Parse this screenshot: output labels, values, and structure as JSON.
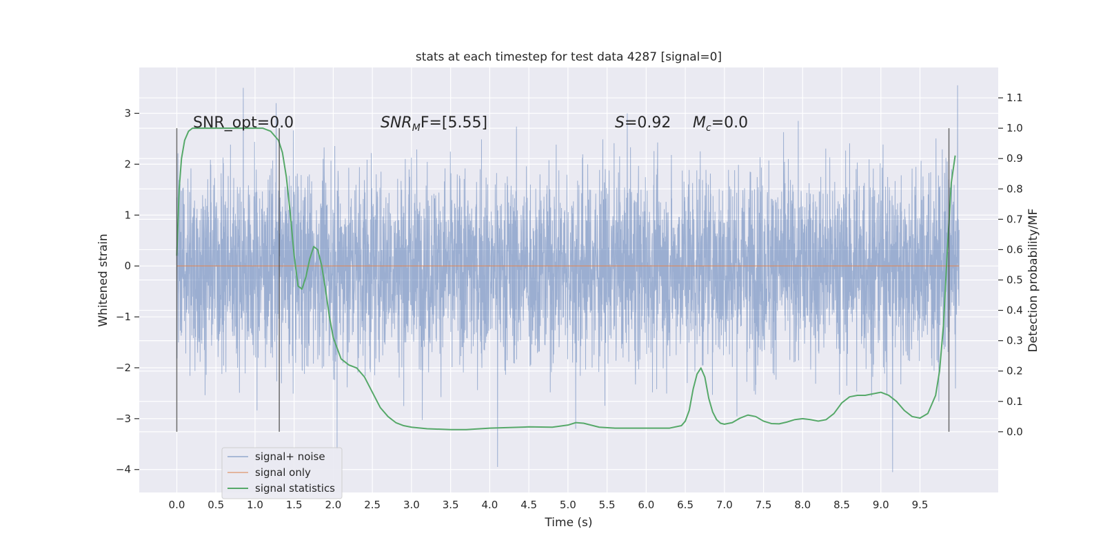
{
  "chart_data": {
    "type": "line",
    "title": "stats at each timestep for test data 4287 [signal=0]",
    "xlabel": "Time (s)",
    "ylabel_left": "Whitened strain",
    "ylabel_right": "Detection probability/MF",
    "xlim": [
      -0.48,
      10.5
    ],
    "ylim_left": [
      -4.45,
      3.9
    ],
    "ylim_right": [
      -0.2,
      1.2
    ],
    "x_ticks": [
      "0.0",
      "0.5",
      "1.0",
      "1.5",
      "2.0",
      "2.5",
      "3.0",
      "3.5",
      "4.0",
      "4.5",
      "5.0",
      "5.5",
      "6.0",
      "6.5",
      "7.0",
      "7.5",
      "8.0",
      "8.5",
      "9.0",
      "9.5"
    ],
    "x_tick_values": [
      0.0,
      0.5,
      1.0,
      1.5,
      2.0,
      2.5,
      3.0,
      3.5,
      4.0,
      4.5,
      5.0,
      5.5,
      6.0,
      6.5,
      7.0,
      7.5,
      8.0,
      8.5,
      9.0,
      9.5
    ],
    "y_left_ticks": [
      "−4",
      "−3",
      "−2",
      "−1",
      "0",
      "1",
      "2",
      "3"
    ],
    "y_left_tick_values": [
      -4,
      -3,
      -2,
      -1,
      0,
      1,
      2,
      3
    ],
    "y_right_ticks": [
      "0.0",
      "0.1",
      "0.2",
      "0.3",
      "0.4",
      "0.5",
      "0.6",
      "0.7",
      "0.8",
      "0.9",
      "1.0",
      "1.1"
    ],
    "y_right_tick_values": [
      0.0,
      0.1,
      0.2,
      0.3,
      0.4,
      0.5,
      0.6,
      0.7,
      0.8,
      0.9,
      1.0,
      1.1
    ],
    "grid": true,
    "legend_position": "lower-left",
    "annotations": {
      "snr_opt": "SNR_opt=0.0",
      "snr_mf_base": "SNR",
      "snr_mf_sub": "M",
      "snr_mf_rest": "F=[5.55]",
      "s_var": "S",
      "s_rest": "=0.92",
      "mc_var": "M",
      "mc_sub": "c",
      "mc_rest": "=0.0"
    },
    "vertical_markers": [
      {
        "x": 0.0,
        "ymin_right": 0.0,
        "ymax_right": 1.0
      },
      {
        "x": 1.31,
        "ymin_right": 0.0,
        "ymax_right": 1.0
      },
      {
        "x": 9.87,
        "ymin_right": 0.0,
        "ymax_right": 1.0
      }
    ],
    "series": [
      {
        "name": "signal+ noise",
        "axis": "left",
        "kind": "noise-trace",
        "x_range": [
          0.0,
          10.0
        ],
        "approx_std": 0.95,
        "notable_peaks": [
          [
            0.85,
            3.5
          ],
          [
            1.27,
            3.2
          ],
          [
            4.1,
            -3.95
          ],
          [
            5.1,
            -3.2
          ],
          [
            9.15,
            -4.05
          ],
          [
            9.98,
            3.55
          ],
          [
            2.05,
            -3.6
          ]
        ]
      },
      {
        "name": "signal only",
        "axis": "left",
        "x": [
          0.0,
          10.0
        ],
        "y": [
          0.0,
          0.0
        ]
      },
      {
        "name": "signal statistics",
        "axis": "right",
        "x": [
          0.0,
          0.03,
          0.06,
          0.1,
          0.15,
          0.2,
          0.3,
          0.5,
          0.8,
          1.0,
          1.1,
          1.2,
          1.3,
          1.35,
          1.4,
          1.45,
          1.5,
          1.55,
          1.6,
          1.65,
          1.7,
          1.75,
          1.8,
          1.85,
          1.9,
          1.95,
          2.0,
          2.1,
          2.2,
          2.3,
          2.4,
          2.5,
          2.6,
          2.7,
          2.8,
          2.9,
          3.0,
          3.2,
          3.5,
          3.7,
          4.0,
          4.5,
          4.8,
          5.0,
          5.1,
          5.2,
          5.4,
          5.6,
          6.0,
          6.3,
          6.45,
          6.5,
          6.55,
          6.6,
          6.65,
          6.7,
          6.75,
          6.8,
          6.85,
          6.9,
          6.95,
          7.0,
          7.1,
          7.2,
          7.3,
          7.4,
          7.5,
          7.6,
          7.7,
          7.8,
          7.9,
          8.0,
          8.1,
          8.2,
          8.3,
          8.4,
          8.5,
          8.6,
          8.7,
          8.8,
          8.9,
          9.0,
          9.1,
          9.2,
          9.3,
          9.4,
          9.5,
          9.6,
          9.7,
          9.75,
          9.8,
          9.85,
          9.9,
          9.95
        ],
        "y": [
          0.58,
          0.8,
          0.9,
          0.96,
          0.99,
          1.0,
          1.0,
          1.0,
          1.0,
          1.0,
          1.0,
          0.99,
          0.96,
          0.92,
          0.84,
          0.72,
          0.58,
          0.48,
          0.47,
          0.51,
          0.57,
          0.61,
          0.6,
          0.55,
          0.47,
          0.38,
          0.31,
          0.24,
          0.22,
          0.21,
          0.18,
          0.13,
          0.08,
          0.05,
          0.03,
          0.02,
          0.015,
          0.01,
          0.007,
          0.007,
          0.012,
          0.016,
          0.015,
          0.022,
          0.03,
          0.028,
          0.015,
          0.012,
          0.012,
          0.012,
          0.02,
          0.035,
          0.07,
          0.14,
          0.19,
          0.21,
          0.18,
          0.11,
          0.065,
          0.04,
          0.028,
          0.025,
          0.03,
          0.045,
          0.055,
          0.05,
          0.035,
          0.027,
          0.026,
          0.032,
          0.04,
          0.043,
          0.04,
          0.035,
          0.04,
          0.06,
          0.095,
          0.115,
          0.12,
          0.12,
          0.125,
          0.13,
          0.12,
          0.1,
          0.07,
          0.05,
          0.045,
          0.06,
          0.12,
          0.2,
          0.35,
          0.6,
          0.82,
          0.91
        ]
      }
    ]
  },
  "colors": {
    "plot_background": "#eaeaf2",
    "grid": "#ffffff",
    "noise": "#4c72b0",
    "signal_only": "#dd8452",
    "statistics": "#55a868",
    "markers": "#3c3c3c",
    "text": "#262626"
  },
  "legend": {
    "items": [
      {
        "label": "signal+ noise",
        "color": "#4c72b0"
      },
      {
        "label": "signal only",
        "color": "#dd8452"
      },
      {
        "label": "signal statistics",
        "color": "#55a868"
      }
    ]
  }
}
